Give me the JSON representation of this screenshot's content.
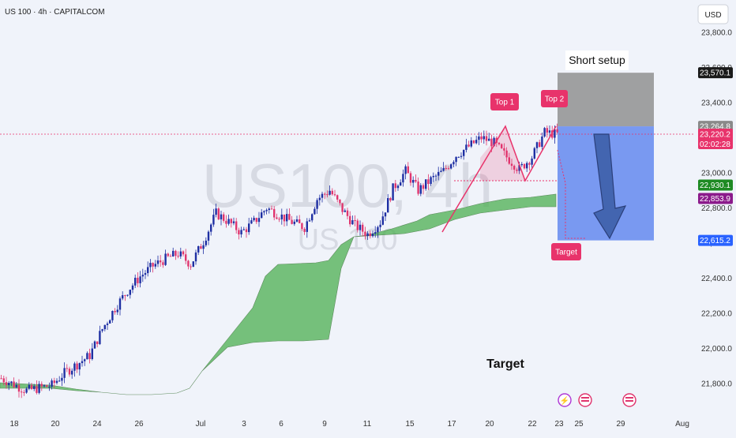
{
  "header": {
    "symbol": "US 100 · 4h · CAPITALCOM",
    "currency": "USD"
  },
  "watermark": {
    "main": "US100, 4h",
    "sub": "US 100"
  },
  "annotations": {
    "short_setup": "Short setup",
    "top1": "Top 1",
    "top2": "Top 2",
    "target_box": "Target",
    "target_text": "Target"
  },
  "price_tags": [
    {
      "price": 23570.1,
      "label": "23,570.1",
      "color": "#1a1a1a"
    },
    {
      "price": 23264.8,
      "label": "23,264.8",
      "color": "#8a8a8a"
    },
    {
      "price": 23220.2,
      "label": "23,220.2",
      "sub": "02:02:28",
      "color": "#e8336b"
    },
    {
      "price": 22930.1,
      "label": "22,930.1",
      "color": "#1e8a23"
    },
    {
      "price": 22853.9,
      "label": "22,853.9",
      "color": "#8b1a8b"
    },
    {
      "price": 22615.2,
      "label": "22,615.2",
      "color": "#2962ff"
    }
  ],
  "colors": {
    "up": "#1e2fa3",
    "down": "#e0356e",
    "cloud": "#4caf50",
    "accent": "#e8336b",
    "target_zone": "#6b8ff0",
    "stop_zone": "#909090"
  },
  "chart_data": {
    "type": "candlestick",
    "title": "US 100 · 4h · CAPITALCOM",
    "ylim": [
      21700,
      23900
    ],
    "y_ticks": [
      21800,
      22000,
      22200,
      22400,
      22600,
      22800,
      23000,
      23200,
      23400,
      23600,
      23800
    ],
    "y_tick_labels": [
      "21,800.0",
      "22,000.0",
      "22,200.0",
      "22,400.0",
      "22,600.0",
      "22,800.0",
      "23,000.0",
      "23,200.0",
      "23,400.0",
      "23,600.0",
      "23,800.0"
    ],
    "x_ticks": [
      "18",
      "20",
      "24",
      "26",
      "Jul",
      "3",
      "6",
      "9",
      "11",
      "15",
      "17",
      "20",
      "22",
      "23",
      "25",
      "29",
      "Aug"
    ],
    "approx_close_path": [
      [
        0,
        21830
      ],
      [
        10,
        21760
      ],
      [
        20,
        21790
      ],
      [
        25,
        21860
      ],
      [
        30,
        21910
      ],
      [
        35,
        21960
      ],
      [
        40,
        22110
      ],
      [
        45,
        22230
      ],
      [
        50,
        22330
      ],
      [
        55,
        22410
      ],
      [
        60,
        22470
      ],
      [
        65,
        22510
      ],
      [
        70,
        22540
      ],
      [
        75,
        22480
      ],
      [
        80,
        22610
      ],
      [
        85,
        22770
      ],
      [
        90,
        22720
      ],
      [
        95,
        22660
      ],
      [
        100,
        22720
      ],
      [
        105,
        22800
      ],
      [
        110,
        22760
      ],
      [
        115,
        22720
      ],
      [
        120,
        22690
      ],
      [
        125,
        22850
      ],
      [
        130,
        22900
      ],
      [
        135,
        22790
      ],
      [
        140,
        22700
      ],
      [
        145,
        22650
      ],
      [
        150,
        22720
      ],
      [
        155,
        22910
      ],
      [
        160,
        23010
      ],
      [
        165,
        22900
      ],
      [
        170,
        22960
      ],
      [
        175,
        23010
      ],
      [
        180,
        23100
      ],
      [
        185,
        23150
      ],
      [
        190,
        23200
      ],
      [
        195,
        23170
      ],
      [
        200,
        23090
      ],
      [
        205,
        23020
      ],
      [
        210,
        23090
      ],
      [
        215,
        23230
      ],
      [
        220,
        23220
      ]
    ],
    "setup": {
      "stop_zone": [
        23264.8,
        23570.1
      ],
      "target_zone": [
        22615.2,
        23264.8
      ],
      "entry": 23220.2,
      "target": 22615.2
    }
  }
}
